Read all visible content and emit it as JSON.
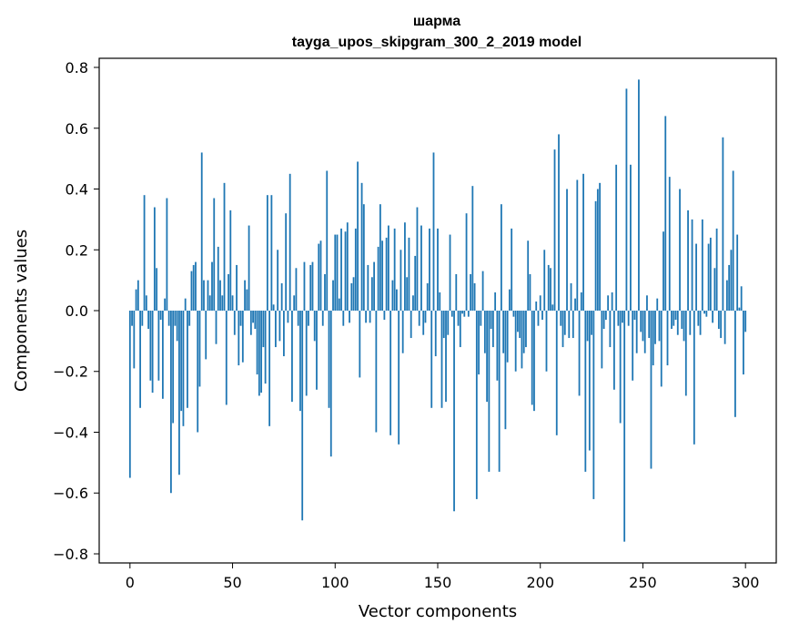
{
  "chart_data": {
    "type": "bar",
    "title": "шарма",
    "subtitle": "tayga_upos_skipgram_300_2_2019 model",
    "xlabel": "Vector components",
    "ylabel": "Components values",
    "xlim": [
      -15,
      315
    ],
    "ylim": [
      -0.83,
      0.83
    ],
    "xticks": [
      0,
      50,
      100,
      150,
      200,
      250,
      300
    ],
    "yticks": [
      -0.8,
      -0.6,
      -0.4,
      -0.2,
      0.0,
      0.2,
      0.4,
      0.6,
      0.8
    ],
    "ytick_labels": [
      "−0.8",
      "−0.6",
      "−0.4",
      "−0.2",
      "0.0",
      "0.2",
      "0.4",
      "0.6",
      "0.8"
    ],
    "grid": false,
    "bar_color": "#1f77b4",
    "values": [
      -0.55,
      -0.05,
      -0.19,
      0.07,
      0.1,
      -0.32,
      -0.05,
      0.38,
      0.05,
      -0.06,
      -0.23,
      -0.27,
      0.34,
      0.14,
      -0.23,
      -0.03,
      -0.29,
      0.04,
      0.37,
      -0.05,
      -0.6,
      -0.37,
      -0.05,
      -0.1,
      -0.54,
      -0.33,
      -0.38,
      0.04,
      -0.32,
      -0.05,
      0.13,
      0.15,
      0.16,
      -0.4,
      -0.25,
      0.52,
      0.1,
      -0.16,
      0.1,
      0.05,
      0.16,
      0.37,
      -0.11,
      0.21,
      0.1,
      0.05,
      0.42,
      -0.31,
      0.12,
      0.33,
      0.05,
      -0.08,
      0.15,
      -0.18,
      -0.05,
      -0.17,
      0.1,
      0.07,
      0.28,
      -0.08,
      -0.04,
      -0.06,
      -0.21,
      -0.28,
      -0.27,
      -0.12,
      -0.24,
      0.38,
      -0.38,
      0.38,
      0.02,
      -0.12,
      0.2,
      -0.1,
      0.09,
      -0.15,
      0.32,
      -0.04,
      0.45,
      -0.3,
      0.05,
      0.14,
      -0.05,
      -0.33,
      -0.69,
      0.16,
      -0.28,
      -0.05,
      0.15,
      0.16,
      -0.1,
      -0.26,
      0.22,
      0.23,
      -0.05,
      0.12,
      0.46,
      -0.32,
      -0.48,
      0.1,
      0.25,
      0.25,
      0.04,
      0.27,
      -0.05,
      0.26,
      0.29,
      -0.04,
      0.09,
      0.11,
      0.27,
      0.49,
      -0.22,
      0.42,
      0.35,
      -0.04,
      0.15,
      -0.04,
      0.11,
      0.16,
      -0.4,
      0.21,
      0.35,
      0.23,
      -0.03,
      0.24,
      0.28,
      -0.41,
      0.1,
      0.27,
      0.07,
      -0.44,
      0.2,
      -0.14,
      0.29,
      0.11,
      0.24,
      -0.09,
      0.05,
      0.18,
      0.34,
      -0.05,
      0.28,
      -0.08,
      -0.04,
      0.09,
      0.27,
      -0.32,
      0.52,
      -0.15,
      0.27,
      0.06,
      -0.32,
      -0.09,
      -0.3,
      -0.08,
      0.25,
      -0.02,
      -0.66,
      0.12,
      -0.05,
      -0.12,
      -0.01,
      -0.02,
      0.32,
      -0.02,
      0.12,
      0.41,
      0.09,
      -0.62,
      -0.21,
      -0.05,
      0.13,
      -0.14,
      -0.3,
      -0.53,
      -0.06,
      -0.12,
      0.06,
      -0.23,
      -0.53,
      0.35,
      -0.14,
      -0.39,
      -0.17,
      0.07,
      0.27,
      -0.02,
      -0.2,
      -0.07,
      -0.09,
      -0.19,
      -0.14,
      -0.12,
      0.23,
      0.12,
      -0.31,
      -0.33,
      0.03,
      -0.05,
      0.05,
      -0.03,
      0.2,
      -0.2,
      0.15,
      0.14,
      0.02,
      0.53,
      -0.41,
      0.58,
      -0.05,
      -0.12,
      -0.08,
      0.4,
      -0.09,
      0.09,
      -0.09,
      0.04,
      0.43,
      -0.28,
      0.06,
      0.45,
      -0.53,
      -0.1,
      -0.46,
      -0.08,
      -0.62,
      0.36,
      0.4,
      0.42,
      -0.19,
      -0.06,
      -0.03,
      0.05,
      -0.12,
      0.06,
      -0.26,
      0.48,
      -0.05,
      -0.37,
      -0.04,
      -0.76,
      0.73,
      -0.05,
      0.48,
      -0.23,
      -0.03,
      -0.14,
      0.76,
      -0.07,
      -0.1,
      -0.14,
      0.05,
      -0.09,
      -0.52,
      -0.18,
      -0.11,
      0.04,
      -0.1,
      -0.25,
      0.26,
      0.64,
      -0.18,
      0.44,
      -0.06,
      -0.05,
      -0.03,
      -0.08,
      0.4,
      -0.06,
      -0.1,
      -0.28,
      0.33,
      -0.08,
      0.3,
      -0.44,
      0.22,
      -0.05,
      -0.08,
      0.3,
      -0.01,
      -0.02,
      0.22,
      0.24,
      -0.04,
      0.14,
      0.27,
      -0.06,
      -0.09,
      0.57,
      -0.11,
      0.1,
      0.15,
      0.2,
      0.46,
      -0.35,
      0.25,
      0.01,
      0.08,
      -0.21,
      -0.07
    ]
  }
}
